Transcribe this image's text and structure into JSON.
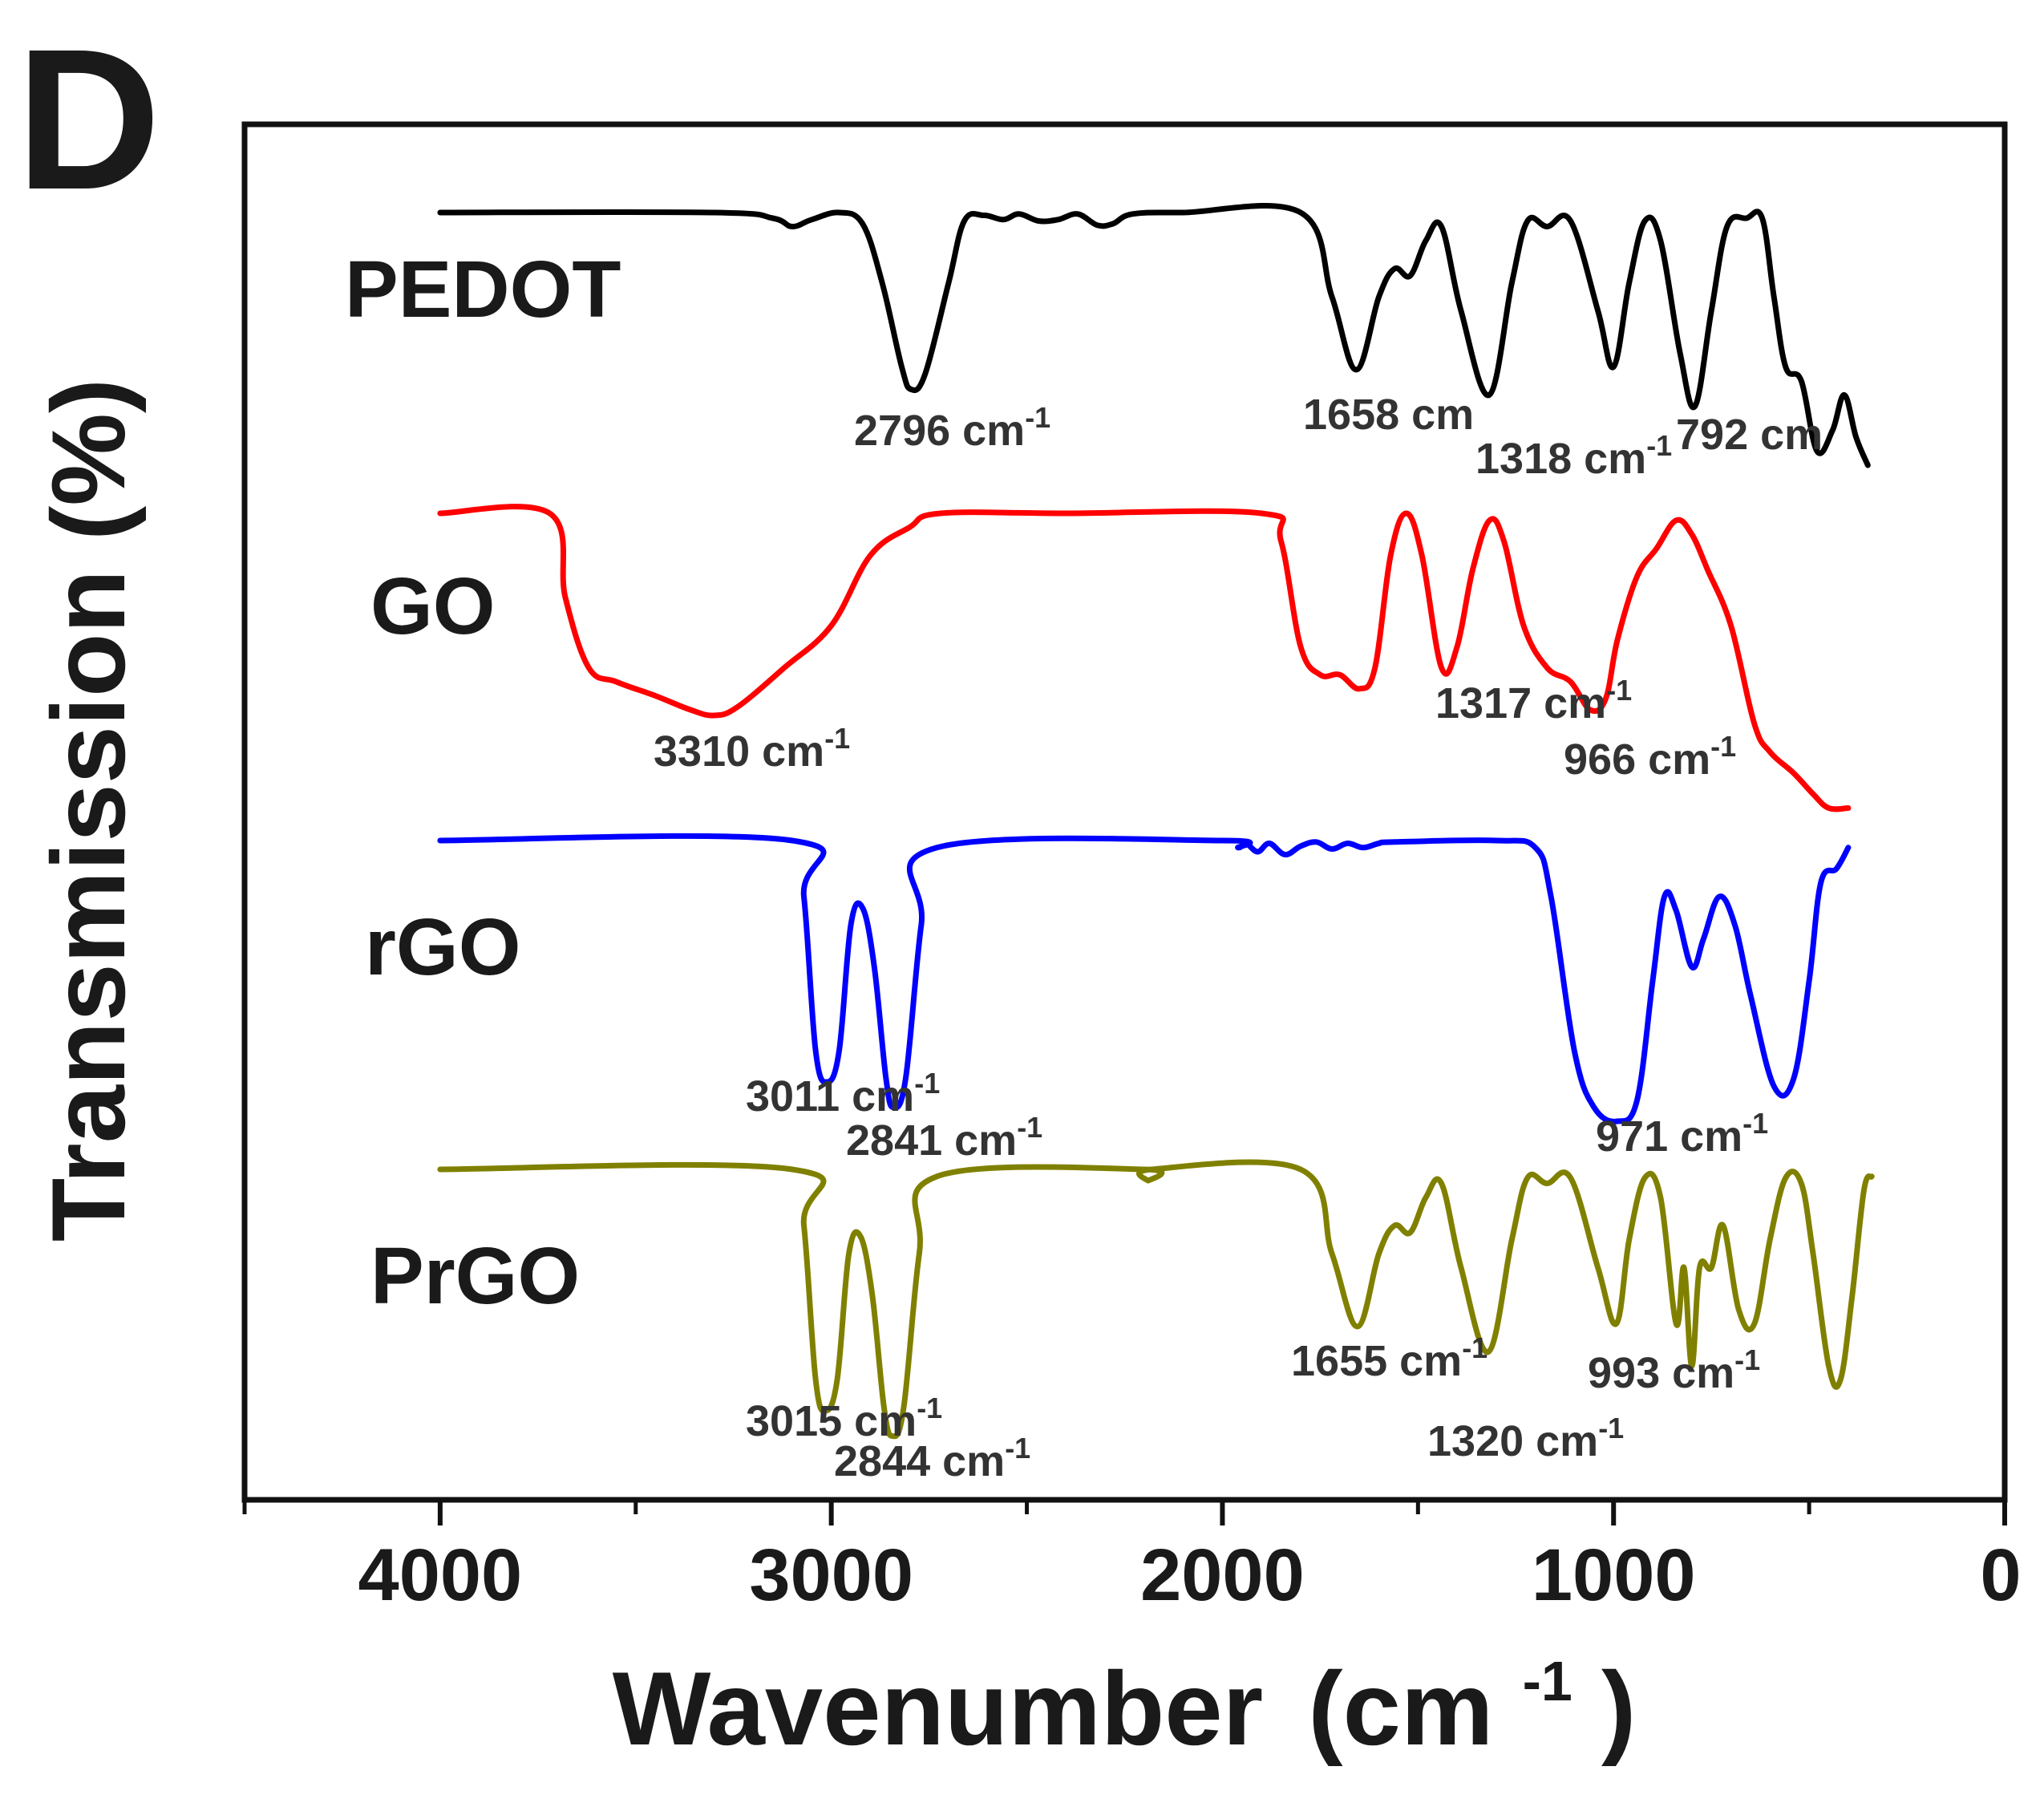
{
  "panel_letter": "D",
  "chart_data": {
    "type": "line",
    "title": "",
    "xlabel": "Wavenumber (cm-1)",
    "xlabel_main": "Wavenumber",
    "xlabel_unit_open": "(cm",
    "xlabel_unit_sup": "-1",
    "xlabel_unit_close": ")",
    "ylabel": "Transmission (%)",
    "xlim": [
      4500,
      0
    ],
    "x_ticks": [
      4000,
      3000,
      2000,
      1000,
      0
    ],
    "x_tick_labels": [
      "4000",
      "3000",
      "2000",
      "1000",
      "0"
    ],
    "x_minor_ticks": [
      4500,
      3500,
      2500,
      1500,
      500
    ],
    "grid": false,
    "legend": "labels left of each trace",
    "series": [
      {
        "name": "PEDOT",
        "color": "#000000",
        "baseline_y": 0,
        "points": [
          [
            4000,
            0
          ],
          [
            3300,
            0
          ],
          [
            3150,
            -4
          ],
          [
            3100,
            -10
          ],
          [
            3050,
            -5
          ],
          [
            2980,
            0
          ],
          [
            2920,
            -8
          ],
          [
            2870,
            -50
          ],
          [
            2820,
            -110
          ],
          [
            2796,
            -126
          ],
          [
            2760,
            -115
          ],
          [
            2700,
            -50
          ],
          [
            2660,
            -6
          ],
          [
            2610,
            -2
          ],
          [
            2560,
            -5
          ],
          [
            2520,
            -1
          ],
          [
            2470,
            -6
          ],
          [
            2420,
            -5
          ],
          [
            2370,
            -1
          ],
          [
            2320,
            -9
          ],
          [
            2280,
            -8
          ],
          [
            2230,
            -1
          ],
          [
            2100,
            0
          ],
          [
            1800,
            0
          ],
          [
            1720,
            -60
          ],
          [
            1658,
            -112
          ],
          [
            1600,
            -60
          ],
          [
            1560,
            -40
          ],
          [
            1520,
            -45
          ],
          [
            1480,
            -20
          ],
          [
            1440,
            -10
          ],
          [
            1390,
            -70
          ],
          [
            1318,
            -130
          ],
          [
            1260,
            -50
          ],
          [
            1220,
            -6
          ],
          [
            1170,
            -10
          ],
          [
            1110,
            -6
          ],
          [
            1040,
            -70
          ],
          [
            1000,
            -110
          ],
          [
            960,
            -50
          ],
          [
            920,
            -6
          ],
          [
            880,
            -20
          ],
          [
            830,
            -100
          ],
          [
            792,
            -138
          ],
          [
            750,
            -70
          ],
          [
            710,
            -10
          ],
          [
            660,
            -4
          ],
          [
            620,
            -4
          ],
          [
            590,
            -60
          ],
          [
            560,
            -110
          ],
          [
            520,
            -120
          ],
          [
            480,
            -170
          ],
          [
            440,
            -155
          ],
          [
            410,
            -130
          ],
          [
            380,
            -160
          ],
          [
            350,
            -180
          ]
        ],
        "peaks": [
          {
            "label": "2796 cm",
            "sup": "-1",
            "x": 2796
          },
          {
            "label": "1658 cm",
            "sup": "",
            "x": 1658
          },
          {
            "label": "1318 cm",
            "sup": "-1",
            "x": 1318
          },
          {
            "label": "792 cm",
            "sup": "",
            "x": 792
          }
        ]
      },
      {
        "name": "GO",
        "color": "#ff0000",
        "baseline_y": 0,
        "points": [
          [
            4000,
            0
          ],
          [
            3720,
            0
          ],
          [
            3680,
            -60
          ],
          [
            3620,
            -110
          ],
          [
            3550,
            -120
          ],
          [
            3450,
            -130
          ],
          [
            3360,
            -140
          ],
          [
            3300,
            -144
          ],
          [
            3240,
            -138
          ],
          [
            3120,
            -110
          ],
          [
            3000,
            -80
          ],
          [
            2900,
            -30
          ],
          [
            2800,
            -10
          ],
          [
            2720,
            0
          ],
          [
            2400,
            0
          ],
          [
            1900,
            0
          ],
          [
            1850,
            -20
          ],
          [
            1800,
            -95
          ],
          [
            1750,
            -115
          ],
          [
            1700,
            -115
          ],
          [
            1650,
            -125
          ],
          [
            1610,
            -110
          ],
          [
            1570,
            -30
          ],
          [
            1530,
            0
          ],
          [
            1490,
            -30
          ],
          [
            1440,
            -110
          ],
          [
            1400,
            -95
          ],
          [
            1360,
            -40
          ],
          [
            1317,
            -5
          ],
          [
            1280,
            -20
          ],
          [
            1230,
            -80
          ],
          [
            1170,
            -110
          ],
          [
            1110,
            -120
          ],
          [
            1060,
            -140
          ],
          [
            1020,
            -132
          ],
          [
            990,
            -90
          ],
          [
            940,
            -45
          ],
          [
            890,
            -25
          ],
          [
            840,
            -5
          ],
          [
            800,
            -15
          ],
          [
            760,
            -40
          ],
          [
            700,
            -80
          ],
          [
            640,
            -150
          ],
          [
            600,
            -170
          ],
          [
            540,
            -185
          ],
          [
            490,
            -200
          ],
          [
            450,
            -210
          ],
          [
            400,
            -210
          ]
        ],
        "peaks": [
          {
            "label": "3310 cm",
            "sup": "-1",
            "x": 3310
          },
          {
            "label": "1317 cm",
            "sup": "-1",
            "x": 1317
          },
          {
            "label": "966 cm",
            "sup": "-1",
            "x": 966
          }
        ]
      },
      {
        "name": "rGO",
        "color": "#0000ff",
        "baseline_y": 0,
        "points": [
          [
            4000,
            0
          ],
          [
            3100,
            0
          ],
          [
            3070,
            -40
          ],
          [
            3040,
            -150
          ],
          [
            3011,
            -172
          ],
          [
            2980,
            -150
          ],
          [
            2950,
            -60
          ],
          [
            2920,
            -48
          ],
          [
            2890,
            -90
          ],
          [
            2860,
            -170
          ],
          [
            2841,
            -190
          ],
          [
            2810,
            -170
          ],
          [
            2770,
            -60
          ],
          [
            2730,
            -5
          ],
          [
            2000,
            0
          ],
          [
            1960,
            -5
          ],
          [
            1940,
            -2
          ],
          [
            1910,
            -8
          ],
          [
            1880,
            -2
          ],
          [
            1840,
            -10
          ],
          [
            1800,
            -4
          ],
          [
            1760,
            -1
          ],
          [
            1720,
            -6
          ],
          [
            1680,
            -2
          ],
          [
            1640,
            -5
          ],
          [
            1600,
            -2
          ],
          [
            1560,
            -1
          ],
          [
            1300,
            0
          ],
          [
            1200,
            -5
          ],
          [
            1160,
            -40
          ],
          [
            1100,
            -150
          ],
          [
            1050,
            -190
          ],
          [
            990,
            -200
          ],
          [
            940,
            -185
          ],
          [
            900,
            -100
          ],
          [
            870,
            -40
          ],
          [
            840,
            -50
          ],
          [
            800,
            -90
          ],
          [
            770,
            -70
          ],
          [
            730,
            -40
          ],
          [
            690,
            -60
          ],
          [
            650,
            -110
          ],
          [
            590,
            -175
          ],
          [
            540,
            -170
          ],
          [
            500,
            -100
          ],
          [
            470,
            -30
          ],
          [
            430,
            -20
          ],
          [
            400,
            -5
          ]
        ],
        "peaks": [
          {
            "label": "3011 cm",
            "sup": "-1",
            "x": 3011
          },
          {
            "label": "2841 cm",
            "sup": "-1",
            "x": 2841
          },
          {
            "label": "971 cm",
            "sup": "-1",
            "x": 971
          }
        ]
      },
      {
        "name": "PrGO",
        "color": "#808000",
        "baseline_y": 0,
        "points": [
          [
            4000,
            0
          ],
          [
            3100,
            0
          ],
          [
            3070,
            -40
          ],
          [
            3040,
            -150
          ],
          [
            3015,
            -172
          ],
          [
            2985,
            -150
          ],
          [
            2955,
            -60
          ],
          [
            2925,
            -48
          ],
          [
            2895,
            -90
          ],
          [
            2865,
            -170
          ],
          [
            2844,
            -190
          ],
          [
            2815,
            -170
          ],
          [
            2775,
            -60
          ],
          [
            2730,
            -5
          ],
          [
            2200,
            0
          ],
          [
            2190,
            -8
          ],
          [
            2180,
            0
          ],
          [
            1800,
            0
          ],
          [
            1720,
            -60
          ],
          [
            1655,
            -112
          ],
          [
            1600,
            -60
          ],
          [
            1560,
            -40
          ],
          [
            1520,
            -45
          ],
          [
            1480,
            -20
          ],
          [
            1440,
            -10
          ],
          [
            1390,
            -70
          ],
          [
            1320,
            -130
          ],
          [
            1260,
            -50
          ],
          [
            1220,
            -6
          ],
          [
            1170,
            -10
          ],
          [
            1110,
            -6
          ],
          [
            1040,
            -70
          ],
          [
            993,
            -110
          ],
          [
            960,
            -50
          ],
          [
            920,
            -6
          ],
          [
            880,
            -20
          ],
          [
            840,
            -110
          ],
          [
            820,
            -70
          ],
          [
            800,
            -140
          ],
          [
            780,
            -70
          ],
          [
            750,
            -70
          ],
          [
            720,
            -40
          ],
          [
            680,
            -100
          ],
          [
            640,
            -110
          ],
          [
            600,
            -50
          ],
          [
            560,
            -6
          ],
          [
            520,
            -10
          ],
          [
            490,
            -60
          ],
          [
            450,
            -140
          ],
          [
            420,
            -150
          ],
          [
            390,
            -90
          ],
          [
            360,
            -15
          ],
          [
            340,
            -5
          ]
        ],
        "peaks": [
          {
            "label": "3015 cm",
            "sup": "-1",
            "x": 3015
          },
          {
            "label": "2844 cm",
            "sup": "-1",
            "x": 2844
          },
          {
            "label": "1655 cm",
            "sup": "-1",
            "x": 1655
          },
          {
            "label": "1320 cm",
            "sup": "-1",
            "x": 1320
          },
          {
            "label": "993 cm",
            "sup": "-1",
            "x": 993
          }
        ]
      }
    ]
  }
}
